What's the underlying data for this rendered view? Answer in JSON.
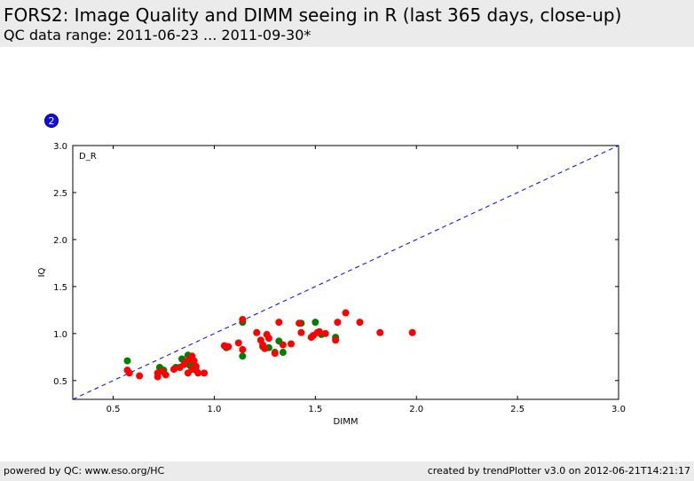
{
  "header": {
    "title": "FORS2: Image Quality and DIMM seeing in R (last 365 days, close-up)",
    "subtitle": "QC data range: 2011-06-23 ... 2011-09-30*"
  },
  "badge": {
    "label": "2"
  },
  "footer": {
    "left": "powered by QC: www.eso.org/HC",
    "right": "created by trendPlotter v3.0 on 2012-06-21T14:21:17"
  },
  "chart_data": {
    "type": "scatter",
    "annotation": "D_R",
    "xlabel": "DIMM",
    "ylabel": "IQ",
    "xlim": [
      0.3,
      3.0
    ],
    "ylim": [
      0.3,
      3.0
    ],
    "xticks": [
      "0.5",
      "1.0",
      "1.5",
      "2.0",
      "2.5",
      "3.0"
    ],
    "yticks": [
      "0.5",
      "1.0",
      "1.5",
      "2.0",
      "2.5",
      "3.0"
    ],
    "grid": false,
    "reference_line": {
      "style": "dashed",
      "color": "#0000ff",
      "from": [
        0.3,
        0.3
      ],
      "to": [
        3.0,
        3.0
      ]
    },
    "series": [
      {
        "color": "#008000",
        "points": [
          [
            0.57,
            0.71
          ],
          [
            0.73,
            0.64
          ],
          [
            0.75,
            0.61
          ],
          [
            0.81,
            0.64
          ],
          [
            0.84,
            0.73
          ],
          [
            0.87,
            0.77
          ],
          [
            0.88,
            0.66
          ],
          [
            0.91,
            0.61
          ],
          [
            1.06,
            0.85
          ],
          [
            1.14,
            0.76
          ],
          [
            1.14,
            1.12
          ],
          [
            1.24,
            0.86
          ],
          [
            1.27,
            0.85
          ],
          [
            1.3,
            0.8
          ],
          [
            1.32,
            0.92
          ],
          [
            1.34,
            0.8
          ],
          [
            1.43,
            1.11
          ],
          [
            1.5,
            1.12
          ],
          [
            1.53,
            0.99
          ],
          [
            1.6,
            0.96
          ]
        ]
      },
      {
        "color": "#ff0000",
        "points": [
          [
            0.58,
            0.58
          ],
          [
            0.57,
            0.61
          ],
          [
            0.63,
            0.55
          ],
          [
            0.72,
            0.54
          ],
          [
            0.72,
            0.58
          ],
          [
            0.74,
            0.6
          ],
          [
            0.76,
            0.56
          ],
          [
            0.8,
            0.62
          ],
          [
            0.83,
            0.64
          ],
          [
            0.85,
            0.67
          ],
          [
            0.86,
            0.7
          ],
          [
            0.87,
            0.58
          ],
          [
            0.88,
            0.73
          ],
          [
            0.89,
            0.62
          ],
          [
            0.89,
            0.76
          ],
          [
            0.9,
            0.71
          ],
          [
            0.91,
            0.65
          ],
          [
            0.92,
            0.58
          ],
          [
            0.95,
            0.58
          ],
          [
            1.05,
            0.87
          ],
          [
            1.07,
            0.86
          ],
          [
            1.12,
            0.9
          ],
          [
            1.14,
            0.83
          ],
          [
            1.14,
            1.15
          ],
          [
            1.21,
            1.01
          ],
          [
            1.23,
            0.93
          ],
          [
            1.24,
            0.88
          ],
          [
            1.25,
            0.84
          ],
          [
            1.26,
            0.99
          ],
          [
            1.27,
            0.95
          ],
          [
            1.3,
            0.79
          ],
          [
            1.32,
            1.12
          ],
          [
            1.34,
            0.88
          ],
          [
            1.38,
            0.89
          ],
          [
            1.42,
            1.11
          ],
          [
            1.43,
            1.01
          ],
          [
            1.48,
            0.96
          ],
          [
            1.49,
            0.98
          ],
          [
            1.51,
            1.01
          ],
          [
            1.52,
            1.02
          ],
          [
            1.55,
            1.0
          ],
          [
            1.6,
            0.93
          ],
          [
            1.61,
            1.12
          ],
          [
            1.65,
            1.22
          ],
          [
            1.72,
            1.12
          ],
          [
            1.82,
            1.01
          ],
          [
            1.98,
            1.01
          ]
        ]
      }
    ]
  }
}
